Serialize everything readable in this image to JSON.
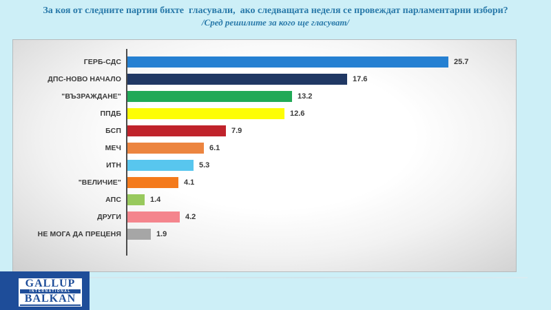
{
  "title": "За коя от следните партии бихте  гласували,  ако следващата неделя се провеждат парламентарни избори?",
  "subtitle": "/Сред решилите за кого ще гласуват/",
  "logo": {
    "line1": "GALLUP",
    "line2": "INTERNATIONAL",
    "line3": "BALKAN"
  },
  "colors": {
    "background": "#cdeff7",
    "title_text": "#2879a9",
    "axis": "#4a4a4a",
    "label_text": "#3a3a3a",
    "logo_bg": "#1e4d99"
  },
  "chart_data": {
    "type": "bar",
    "orientation": "horizontal",
    "title": "За коя от следните партии бихте гласували, ако следващата неделя се провеждат парламентарни избори?",
    "subtitle": "/Сред решилите за кого ще гласуват/",
    "categories": [
      "ГЕРБ-СДС",
      "ДПС-НОВО НАЧАЛО",
      "\"ВЪЗРАЖДАНЕ\"",
      "ППДБ",
      "БСП",
      "МЕЧ",
      "ИТН",
      "\"ВЕЛИЧИЕ\"",
      "АПС",
      "ДРУГИ",
      "НЕ МОГА ДА ПРЕЦЕНЯ"
    ],
    "values": [
      25.7,
      17.6,
      13.2,
      12.6,
      7.9,
      6.1,
      5.3,
      4.1,
      1.4,
      4.2,
      1.9
    ],
    "bar_colors": [
      "#2580d2",
      "#203864",
      "#21a957",
      "#fdfd05",
      "#c0232b",
      "#ec8540",
      "#58c6ee",
      "#f47a1c",
      "#98c95d",
      "#f4858d",
      "#a6a6a6"
    ],
    "value_labels": true,
    "xlim": [
      0,
      31
    ],
    "grid": false,
    "legend": "none"
  }
}
